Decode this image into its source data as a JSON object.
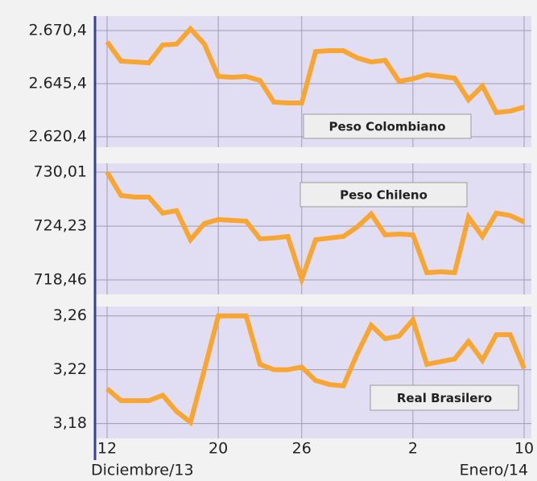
{
  "chart_data": [
    {
      "type": "line",
      "title": "Peso Colombiano",
      "x": [
        0,
        1,
        2,
        3,
        4,
        5,
        6,
        7,
        8,
        9,
        10,
        11,
        12,
        13,
        14,
        15,
        16,
        17,
        18,
        19,
        20,
        21,
        22,
        23,
        24,
        25,
        26,
        27,
        28,
        29,
        30
      ],
      "xlim": [
        -0.87,
        30.52
      ],
      "series": [
        {
          "color": "#f9a531",
          "values": [
            2665.1,
            2656.0,
            2655.6,
            2655.2,
            2663.6,
            2664.0,
            2671.2,
            2664.0,
            2648.8,
            2648.4,
            2648.8,
            2646.9,
            2636.7,
            2636.3,
            2636.3,
            2660.5,
            2660.9,
            2660.9,
            2657.5,
            2655.6,
            2656.4,
            2646.5,
            2647.7,
            2649.6,
            2648.8,
            2648.0,
            2637.8,
            2644.3,
            2631.8,
            2632.5,
            2634.4
          ]
        }
      ],
      "ylim": [
        2615.5,
        2677.2
      ],
      "yticks": [
        {
          "value": 2620.4,
          "label": "2.620,4"
        },
        {
          "value": 2645.4,
          "label": "2.645,4"
        },
        {
          "value": 2670.4,
          "label": "2.670,4"
        }
      ],
      "grid": true
    },
    {
      "type": "line",
      "title": "Peso Chileno",
      "x": [
        0,
        1,
        2,
        3,
        4,
        5,
        6,
        7,
        8,
        9,
        10,
        11,
        12,
        13,
        14,
        15,
        16,
        17,
        18,
        19,
        20,
        21,
        22,
        23,
        24,
        25,
        26,
        27,
        28,
        29,
        30
      ],
      "xlim": [
        -0.87,
        30.52
      ],
      "series": [
        {
          "color": "#f9a531",
          "values": [
            730.01,
            727.51,
            727.34,
            727.34,
            725.62,
            725.88,
            722.77,
            724.5,
            724.93,
            724.84,
            724.76,
            722.86,
            722.95,
            723.12,
            718.54,
            722.77,
            722.95,
            723.12,
            724.15,
            725.53,
            723.29,
            723.37,
            723.29,
            719.24,
            719.33,
            719.24,
            725.19,
            723.12,
            725.62,
            725.36,
            724.67
          ]
        }
      ],
      "ylim": [
        716.91,
        730.96
      ],
      "yticks": [
        {
          "value": 718.46,
          "label": "718,46"
        },
        {
          "value": 724.23,
          "label": "724,23"
        },
        {
          "value": 730.01,
          "label": "730,01"
        }
      ],
      "grid": true
    },
    {
      "type": "line",
      "title": "Real Brasilero",
      "x": [
        0,
        1,
        2,
        3,
        4,
        5,
        6,
        7,
        8,
        9,
        10,
        11,
        12,
        13,
        14,
        15,
        16,
        17,
        18,
        19,
        20,
        21,
        22,
        23,
        24,
        25,
        26,
        27,
        28,
        29,
        30
      ],
      "xlim": [
        -0.87,
        30.52
      ],
      "xticks": [
        {
          "value": 0,
          "label": "12"
        },
        {
          "value": 8,
          "label": "20"
        },
        {
          "value": 14,
          "label": "26"
        },
        {
          "value": 22,
          "label": "2"
        },
        {
          "value": 30,
          "label": "10"
        }
      ],
      "annotations": [
        "Diciembre/13",
        "Enero/14"
      ],
      "series": [
        {
          "color": "#f9a531",
          "values": [
            3.206,
            3.197,
            3.197,
            3.197,
            3.201,
            3.189,
            3.181,
            3.22,
            3.26,
            3.26,
            3.26,
            3.224,
            3.22,
            3.22,
            3.222,
            3.212,
            3.209,
            3.208,
            3.232,
            3.253,
            3.243,
            3.245,
            3.257,
            3.224,
            3.226,
            3.228,
            3.241,
            3.227,
            3.246,
            3.246,
            3.221
          ]
        }
      ],
      "ylim": [
        3.169,
        3.267
      ],
      "yticks": [
        {
          "value": 3.18,
          "label": "3,18"
        },
        {
          "value": 3.22,
          "label": "3,22"
        },
        {
          "value": 3.26,
          "label": "3,26"
        }
      ],
      "grid": true
    }
  ]
}
